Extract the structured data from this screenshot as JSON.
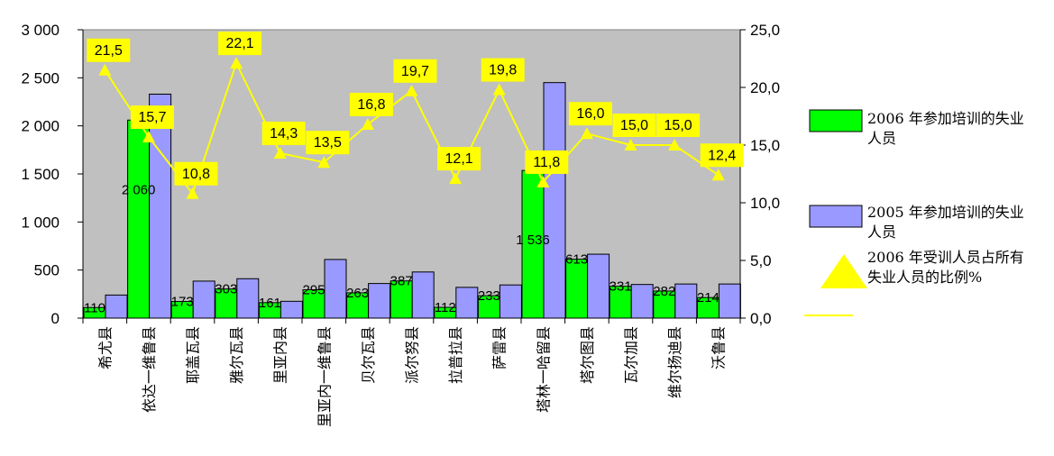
{
  "chart_data": {
    "type": "bar",
    "categories": [
      "希尤县",
      "依达一维鲁县",
      "耶盖瓦县",
      "雅尔瓦县",
      "里亚内县",
      "里亚内一维鲁县",
      "贝尔瓦县",
      "派尔努县",
      "拉普拉县",
      "萨雷县",
      "塔林一哈留县",
      "塔尔图县",
      "瓦尔加县",
      "维尔扬迪县",
      "沃鲁县"
    ],
    "series": [
      {
        "name": "2006 年参加培训的失业人员",
        "axis": "left",
        "color": "#00ff00",
        "values": [
          110,
          2060,
          173,
          303,
          161,
          295,
          263,
          387,
          112,
          233,
          1536,
          613,
          331,
          282,
          214
        ],
        "labels": [
          "110",
          "2 060",
          "173",
          "303",
          "161",
          "295",
          "263",
          "387",
          "112",
          "233",
          "1 536",
          "613",
          "331",
          "282",
          "214"
        ]
      },
      {
        "name": "2005 年参加培训的失业人员",
        "axis": "left",
        "color": "#9999ff",
        "values": [
          240,
          2330,
          385,
          410,
          175,
          610,
          360,
          480,
          320,
          345,
          2450,
          665,
          350,
          355,
          355
        ]
      },
      {
        "name": "2006 年受训人员占所有失业人员的比例%",
        "axis": "right",
        "type": "line",
        "color": "#ffff00",
        "values": [
          21.5,
          15.7,
          10.8,
          22.1,
          14.3,
          13.5,
          16.8,
          19.7,
          12.1,
          19.8,
          11.8,
          16.0,
          15.0,
          15.0,
          12.4
        ],
        "labels": [
          "21,5",
          "15,7",
          "10,8",
          "22,1",
          "14,3",
          "13,5",
          "16,8",
          "19,7",
          "12,1",
          "19,8",
          "11,8",
          "16,0",
          "15,0",
          "15,0",
          "12,4"
        ]
      }
    ],
    "y_left": {
      "ylim": [
        0,
        3000
      ],
      "ticks": [
        0,
        500,
        1000,
        1500,
        2000,
        2500,
        3000
      ],
      "tick_labels": [
        "0",
        "500",
        "1 000",
        "1 500",
        "2 000",
        "2 500",
        "3 000"
      ]
    },
    "y_right": {
      "ylim": [
        0,
        25
      ],
      "ticks": [
        0,
        5,
        10,
        15,
        20,
        25
      ],
      "tick_labels": [
        "0,0",
        "5,0",
        "10,0",
        "15,0",
        "20,0",
        "25,0"
      ]
    },
    "plot_background": "#c0c0c0",
    "legend_position": "right",
    "grid": false
  }
}
